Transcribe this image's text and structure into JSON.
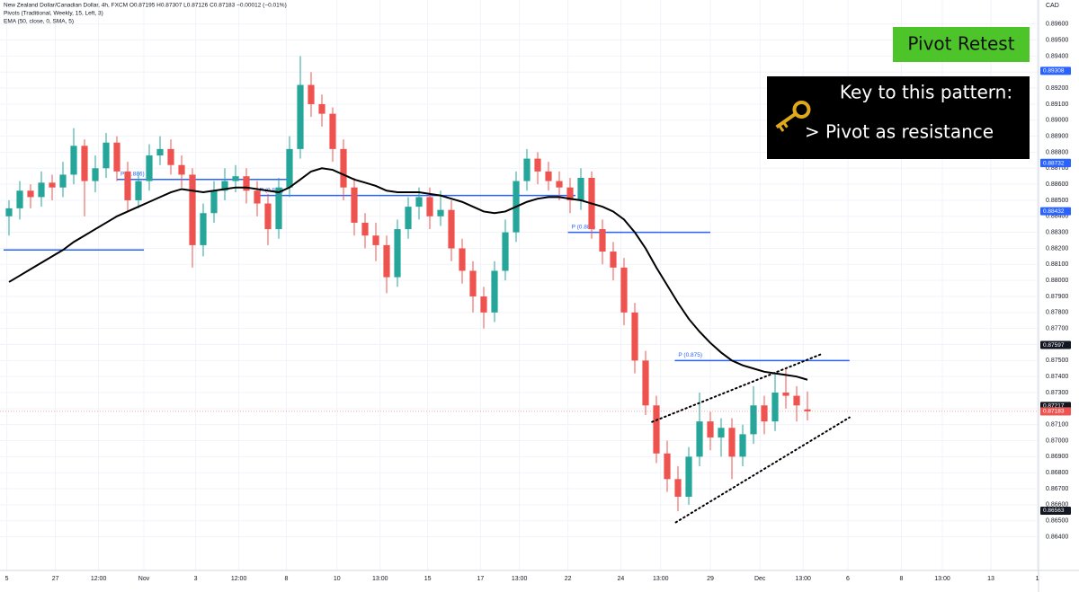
{
  "chart_data": {
    "type": "candlestick",
    "header": [
      "New Zealand Dollar/Canadian Dollar, 4h, FXCM  O0.87195 H0.87307 L0.87126 C0.87183 −0.00012 (−0.01%)",
      "Pivots (Traditional, Weekly, 15, Left, 3)",
      "EMA (50, close, 0, SMA, 5)"
    ],
    "currency": "CAD",
    "badge": "Pivot Retest",
    "key_title": "Key to this pattern:",
    "key_point": "> Pivot as resistance",
    "up_color": "#26a69a",
    "down_color": "#ef5350",
    "candles": [
      [
        0.884,
        0.885,
        0.8828,
        0.8845
      ],
      [
        0.8845,
        0.8862,
        0.8838,
        0.8856
      ],
      [
        0.8856,
        0.886,
        0.8845,
        0.8852
      ],
      [
        0.8852,
        0.8868,
        0.8846,
        0.8861
      ],
      [
        0.8861,
        0.8866,
        0.885,
        0.8858
      ],
      [
        0.8858,
        0.8874,
        0.8852,
        0.8866
      ],
      [
        0.8866,
        0.8895,
        0.886,
        0.8884
      ],
      [
        0.8884,
        0.8888,
        0.884,
        0.8862
      ],
      [
        0.8862,
        0.8878,
        0.8855,
        0.887
      ],
      [
        0.887,
        0.8892,
        0.8864,
        0.8886
      ],
      [
        0.8886,
        0.889,
        0.8862,
        0.8868
      ],
      [
        0.8868,
        0.8874,
        0.8843,
        0.885
      ],
      [
        0.885,
        0.8868,
        0.8845,
        0.8862
      ],
      [
        0.8862,
        0.8885,
        0.8856,
        0.8878
      ],
      [
        0.8878,
        0.889,
        0.8872,
        0.8882
      ],
      [
        0.8882,
        0.8888,
        0.8866,
        0.8872
      ],
      [
        0.8872,
        0.8878,
        0.8858,
        0.8866
      ],
      [
        0.8866,
        0.887,
        0.8808,
        0.8822
      ],
      [
        0.8822,
        0.8848,
        0.8815,
        0.8842
      ],
      [
        0.8842,
        0.8862,
        0.8836,
        0.8856
      ],
      [
        0.8856,
        0.887,
        0.885,
        0.8862
      ],
      [
        0.8862,
        0.8872,
        0.8855,
        0.8865
      ],
      [
        0.8865,
        0.887,
        0.8848,
        0.8856
      ],
      [
        0.8856,
        0.8862,
        0.884,
        0.8848
      ],
      [
        0.8848,
        0.8854,
        0.8822,
        0.8832
      ],
      [
        0.8832,
        0.8864,
        0.8826,
        0.8858
      ],
      [
        0.8858,
        0.889,
        0.8852,
        0.8882
      ],
      [
        0.8882,
        0.894,
        0.8876,
        0.8922
      ],
      [
        0.8922,
        0.893,
        0.8902,
        0.891
      ],
      [
        0.891,
        0.8916,
        0.8896,
        0.8904
      ],
      [
        0.8904,
        0.8908,
        0.8874,
        0.8882
      ],
      [
        0.8882,
        0.8888,
        0.885,
        0.8858
      ],
      [
        0.8858,
        0.8864,
        0.8828,
        0.8836
      ],
      [
        0.8836,
        0.8842,
        0.882,
        0.8828
      ],
      [
        0.8828,
        0.8836,
        0.8812,
        0.8822
      ],
      [
        0.8822,
        0.8828,
        0.8792,
        0.8802
      ],
      [
        0.8802,
        0.8838,
        0.8796,
        0.8832
      ],
      [
        0.8832,
        0.8852,
        0.8826,
        0.8846
      ],
      [
        0.8846,
        0.8858,
        0.8838,
        0.8852
      ],
      [
        0.8852,
        0.8858,
        0.8832,
        0.884
      ],
      [
        0.884,
        0.8856,
        0.8834,
        0.8844
      ],
      [
        0.8844,
        0.885,
        0.8812,
        0.882
      ],
      [
        0.882,
        0.8826,
        0.8798,
        0.8806
      ],
      [
        0.8806,
        0.8812,
        0.878,
        0.879
      ],
      [
        0.879,
        0.8796,
        0.877,
        0.878
      ],
      [
        0.878,
        0.8812,
        0.8774,
        0.8806
      ],
      [
        0.8806,
        0.8838,
        0.88,
        0.883
      ],
      [
        0.883,
        0.8868,
        0.8824,
        0.8862
      ],
      [
        0.8862,
        0.8882,
        0.8856,
        0.8876
      ],
      [
        0.8876,
        0.888,
        0.886,
        0.8868
      ],
      [
        0.8868,
        0.8874,
        0.8856,
        0.8862
      ],
      [
        0.8862,
        0.8868,
        0.885,
        0.8858
      ],
      [
        0.8858,
        0.8864,
        0.8842,
        0.885
      ],
      [
        0.885,
        0.887,
        0.8844,
        0.8864
      ],
      [
        0.8864,
        0.8868,
        0.8826,
        0.8832
      ],
      [
        0.8832,
        0.8838,
        0.881,
        0.8818
      ],
      [
        0.8818,
        0.8824,
        0.88,
        0.8808
      ],
      [
        0.8808,
        0.8814,
        0.8772,
        0.878
      ],
      [
        0.878,
        0.8786,
        0.8742,
        0.875
      ],
      [
        0.875,
        0.8756,
        0.8716,
        0.8722
      ],
      [
        0.8722,
        0.8728,
        0.8686,
        0.8692
      ],
      [
        0.8692,
        0.87,
        0.8668,
        0.8676
      ],
      [
        0.8676,
        0.8684,
        0.8656,
        0.8665
      ],
      [
        0.8665,
        0.8696,
        0.866,
        0.869
      ],
      [
        0.869,
        0.873,
        0.8684,
        0.8712
      ],
      [
        0.8712,
        0.8718,
        0.8694,
        0.8702
      ],
      [
        0.8702,
        0.8714,
        0.869,
        0.8708
      ],
      [
        0.8708,
        0.8714,
        0.8676,
        0.869
      ],
      [
        0.869,
        0.871,
        0.8684,
        0.8704
      ],
      [
        0.8704,
        0.8734,
        0.8698,
        0.8722
      ],
      [
        0.8722,
        0.8728,
        0.8704,
        0.8712
      ],
      [
        0.8712,
        0.8742,
        0.8706,
        0.873
      ],
      [
        0.873,
        0.8745,
        0.872,
        0.8728
      ],
      [
        0.8728,
        0.8734,
        0.8712,
        0.8722
      ],
      [
        0.87195,
        0.87307,
        0.87126,
        0.87183
      ]
    ],
    "ema": {
      "color": "#000000",
      "values": [
        0.8799,
        0.8803,
        0.8807,
        0.8811,
        0.8815,
        0.8819,
        0.8824,
        0.8828,
        0.8832,
        0.8836,
        0.884,
        0.8843,
        0.8846,
        0.8849,
        0.8852,
        0.8855,
        0.8857,
        0.8856,
        0.8855,
        0.8856,
        0.8857,
        0.8858,
        0.8858,
        0.8857,
        0.8856,
        0.8855,
        0.8858,
        0.8863,
        0.8868,
        0.887,
        0.8869,
        0.8866,
        0.8863,
        0.8861,
        0.8859,
        0.8856,
        0.8855,
        0.8855,
        0.8855,
        0.8854,
        0.8853,
        0.8851,
        0.8849,
        0.8846,
        0.8843,
        0.8842,
        0.8843,
        0.8846,
        0.8849,
        0.8851,
        0.8852,
        0.8852,
        0.8851,
        0.885,
        0.8848,
        0.8846,
        0.8843,
        0.8838,
        0.883,
        0.882,
        0.8808,
        0.8797,
        0.8786,
        0.8776,
        0.8768,
        0.8761,
        0.8755,
        0.875,
        0.8747,
        0.8745,
        0.8743,
        0.8742,
        0.8741,
        0.874,
        0.8738
      ]
    },
    "pivots": [
      {
        "value": 0.8819,
        "from": -0.5,
        "to": 12.5
      },
      {
        "value": 0.8863,
        "label": "P (0.886)",
        "from": 10,
        "to": 25.8
      },
      {
        "value": 0.8853,
        "label": "P (0.885)",
        "from": 22.9,
        "to": 52.5
      },
      {
        "value": 0.883,
        "label": "P (0.883)",
        "from": 51.8,
        "to": 65
      },
      {
        "value": 0.875,
        "label": "P (0.875)",
        "from": 61.7,
        "to": 77.9
      }
    ],
    "pivot_color": "#2962ff",
    "trendlines": [
      {
        "from": [
          59.6,
          0.87117
        ],
        "to": [
          75.4,
          0.87543
        ]
      },
      {
        "from": [
          61.8,
          0.8649
        ],
        "to": [
          77.9,
          0.87145
        ]
      }
    ],
    "price_tags": [
      {
        "value": 0.89308,
        "color": "#2962ff"
      },
      {
        "value": 0.88734,
        "color": "#2962ff"
      },
      {
        "value": 0.88732,
        "color": "#2962ff"
      },
      {
        "value": 0.88432,
        "color": "#2962ff"
      },
      {
        "value": 0.87597,
        "color": "#131722"
      },
      {
        "value": 0.87217,
        "color": "#131722"
      },
      {
        "value": 0.87184,
        "color": "#131722"
      },
      {
        "value": 0.87183,
        "color": "#ef5350"
      },
      {
        "value": 0.86563,
        "color": "#131722"
      }
    ],
    "xlim": [
      -0.8333,
      95.4167
    ],
    "ylim": [
      0.8619,
      0.8975
    ],
    "xticks": [
      {
        "value": -0.2,
        "label": "5"
      },
      {
        "value": 4.3,
        "label": "27"
      },
      {
        "value": 8.3,
        "label": "12:00"
      },
      {
        "value": 12.5,
        "label": "Nov"
      },
      {
        "value": 17.3,
        "label": "3"
      },
      {
        "value": 21.3,
        "label": "12:00"
      },
      {
        "value": 25.7,
        "label": "8"
      },
      {
        "value": 30.4,
        "label": "10"
      },
      {
        "value": 34.4,
        "label": "13:00"
      },
      {
        "value": 38.8,
        "label": "15"
      },
      {
        "value": 43.7,
        "label": "17"
      },
      {
        "value": 47.3,
        "label": "13:00"
      },
      {
        "value": 51.8,
        "label": "22"
      },
      {
        "value": 56.7,
        "label": "24"
      },
      {
        "value": 60.4,
        "label": "13:00"
      },
      {
        "value": 65,
        "label": "29"
      },
      {
        "value": 69.6,
        "label": "Dec"
      },
      {
        "value": 73.6,
        "label": "13:00"
      },
      {
        "value": 77.75,
        "label": "6"
      },
      {
        "value": 82.7,
        "label": "8"
      },
      {
        "value": 86.5,
        "label": "13:00"
      },
      {
        "value": 91,
        "label": "13"
      },
      {
        "value": 95.3,
        "label": "1"
      }
    ],
    "yticks": [
      {
        "value": 0.864,
        "label": "0.86400"
      },
      {
        "value": 0.865,
        "label": "0.86500"
      },
      {
        "value": 0.866,
        "label": "0.86600"
      },
      {
        "value": 0.867,
        "label": "0.86700"
      },
      {
        "value": 0.868,
        "label": "0.86800"
      },
      {
        "value": 0.869,
        "label": "0.86900"
      },
      {
        "value": 0.87,
        "label": "0.87000"
      },
      {
        "value": 0.871,
        "label": "0.87100"
      },
      {
        "value": 0.872,
        "label": "0.87200"
      },
      {
        "value": 0.873,
        "label": "0.87300"
      },
      {
        "value": 0.874,
        "label": "0.87400"
      },
      {
        "value": 0.875,
        "label": "0.87500"
      },
      {
        "value": 0.876,
        "label": "0.87600"
      },
      {
        "value": 0.877,
        "label": "0.87700"
      },
      {
        "value": 0.878,
        "label": "0.87800"
      },
      {
        "value": 0.879,
        "label": "0.87900"
      },
      {
        "value": 0.88,
        "label": "0.88000"
      },
      {
        "value": 0.881,
        "label": "0.88100"
      },
      {
        "value": 0.882,
        "label": "0.88200"
      },
      {
        "value": 0.883,
        "label": "0.88300"
      },
      {
        "value": 0.884,
        "label": "0.88400"
      },
      {
        "value": 0.885,
        "label": "0.88500"
      },
      {
        "value": 0.886,
        "label": "0.88600"
      },
      {
        "value": 0.887,
        "label": "0.88700"
      },
      {
        "value": 0.888,
        "label": "0.88800"
      },
      {
        "value": 0.889,
        "label": "0.88900"
      },
      {
        "value": 0.89,
        "label": "0.89000"
      },
      {
        "value": 0.891,
        "label": "0.89100"
      },
      {
        "value": 0.892,
        "label": "0.89200"
      },
      {
        "value": 0.893,
        "label": "0.89300"
      },
      {
        "value": 0.894,
        "label": "0.89400"
      },
      {
        "value": 0.895,
        "label": "0.89500"
      },
      {
        "value": 0.896,
        "label": "0.89600"
      }
    ],
    "grid": true
  }
}
